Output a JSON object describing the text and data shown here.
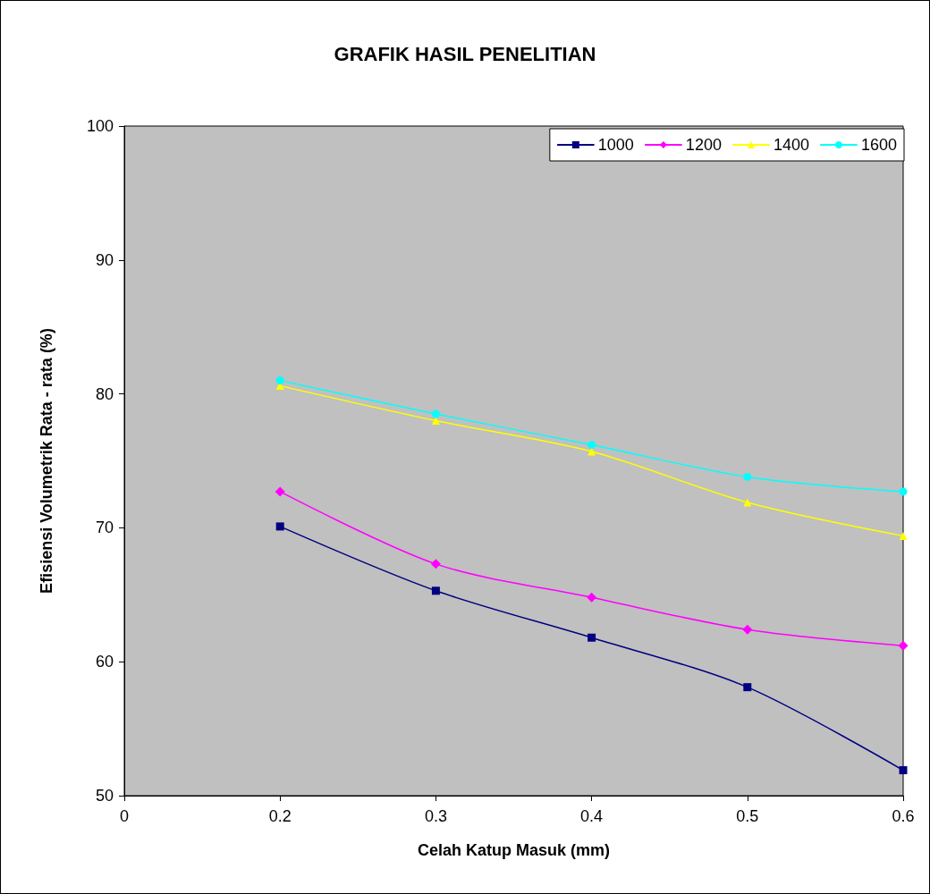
{
  "chart_data": {
    "type": "line",
    "title": "GRAFIK HASIL PENELITIAN",
    "xlabel": "Celah Katup Masuk (mm)",
    "ylabel": "Efisiensi Volumetrik Rata - rata (%)",
    "categories": [
      "0",
      "0.2",
      "0.3",
      "0.4",
      "0.5",
      "0.6"
    ],
    "series": [
      {
        "name": "1000",
        "color": "#000080",
        "marker": "square",
        "values": [
          null,
          70.1,
          65.3,
          61.8,
          58.1,
          51.9
        ]
      },
      {
        "name": "1200",
        "color": "#ff00ff",
        "marker": "diamond",
        "values": [
          null,
          72.7,
          67.3,
          64.8,
          62.4,
          61.2
        ]
      },
      {
        "name": "1400",
        "color": "#ffff00",
        "marker": "triangle",
        "values": [
          null,
          80.6,
          78.0,
          75.7,
          71.9,
          69.4
        ]
      },
      {
        "name": "1600",
        "color": "#00ffff",
        "marker": "circle",
        "values": [
          null,
          81.0,
          78.5,
          76.2,
          73.8,
          72.7
        ]
      }
    ],
    "ylim": [
      50,
      100
    ],
    "yticks": [
      50,
      60,
      70,
      80,
      90,
      100
    ],
    "grid": false,
    "legend": "top right",
    "line_style": "solid"
  }
}
